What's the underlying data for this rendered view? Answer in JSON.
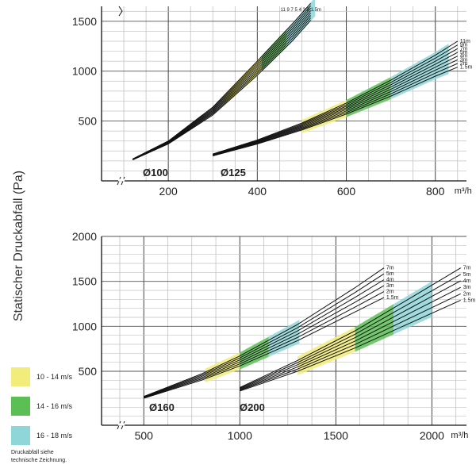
{
  "y_axis_title": "Statischer Druckabfall (Pa)",
  "legend": [
    {
      "label": "10 - 14 m/s",
      "color": "#f2ec7a"
    },
    {
      "label": "14 - 16 m/s",
      "color": "#5cbf55"
    },
    {
      "label": "16 - 18 m/s",
      "color": "#8fd6d8"
    }
  ],
  "note_lines": [
    "Druckabfall siehe",
    "technische Zeichnung."
  ],
  "chart_data": [
    {
      "type": "line",
      "x_unit": "m³/h",
      "x_ticks": [
        200,
        400,
        600,
        800
      ],
      "y_ticks": [
        500,
        1000,
        1500
      ],
      "xlim": [
        50,
        870
      ],
      "ylim": [
        -100,
        1650
      ],
      "ducts": [
        {
          "name": "Ø100",
          "lengths": [
            "11",
            "9",
            "7",
            "5",
            "4",
            "3",
            "2",
            "1.5m"
          ],
          "lengths_label": "11 9 7 5 4 3 2 1.5m",
          "series": [
            {
              "name": "11m",
              "x": [
                120,
                200,
                300,
                400,
                480,
                520
              ],
              "y": [
                120,
                300,
                640,
                1100,
                1480,
                1680
              ]
            },
            {
              "name": "1.5m",
              "x": [
                120,
                200,
                300,
                400,
                480,
                540
              ],
              "y": [
                110,
                270,
                560,
                960,
                1310,
                1610
              ]
            }
          ],
          "bands": [
            {
              "speed": "10 - 14 m/s",
              "x_from": 325,
              "x_to": 410
            },
            {
              "speed": "14 - 16 m/s",
              "x_from": 410,
              "x_to": 465
            },
            {
              "speed": "16 - 18 m/s",
              "x_from": 465,
              "x_to": 530
            }
          ]
        },
        {
          "name": "Ø125",
          "lengths": [
            "11m",
            "9m",
            "7m",
            "5m",
            "4m",
            "3m",
            "2m",
            "1.5m"
          ],
          "series": [
            {
              "name": "11m",
              "x": [
                300,
                400,
                500,
                600,
                700,
                800,
                850
              ],
              "y": [
                170,
                310,
                480,
                680,
                910,
                1160,
                1300
              ]
            },
            {
              "name": "1.5m",
              "x": [
                300,
                400,
                500,
                600,
                700,
                800,
                850
              ],
              "y": [
                150,
                270,
                410,
                570,
                750,
                950,
                1040
              ]
            }
          ],
          "bands": [
            {
              "speed": "10 - 14 m/s",
              "x_from": 500,
              "x_to": 600
            },
            {
              "speed": "14 - 16 m/s",
              "x_from": 600,
              "x_to": 700
            },
            {
              "speed": "16 - 18 m/s",
              "x_from": 700,
              "x_to": 830
            }
          ]
        }
      ]
    },
    {
      "type": "line",
      "x_unit": "m³/h",
      "x_ticks": [
        500,
        1000,
        1500,
        2000
      ],
      "y_ticks": [
        500,
        1000,
        1500,
        2000
      ],
      "xlim": [
        280,
        2180
      ],
      "ylim": [
        -100,
        2000
      ],
      "ducts": [
        {
          "name": "Ø160",
          "lengths": [
            "7m",
            "5m",
            "4m",
            "3m",
            "2m",
            "1.5m"
          ],
          "series": [
            {
              "name": "7m",
              "x": [
                500,
                800,
                1000,
                1300,
                1600,
                1750
              ],
              "y": [
                220,
                470,
                670,
                1020,
                1430,
                1650
              ]
            },
            {
              "name": "1.5m",
              "x": [
                500,
                800,
                1000,
                1300,
                1600,
                1750
              ],
              "y": [
                200,
                400,
                560,
                840,
                1160,
                1320
              ]
            }
          ],
          "bands": [
            {
              "speed": "10 - 14 m/s",
              "x_from": 820,
              "x_to": 1000
            },
            {
              "speed": "14 - 16 m/s",
              "x_from": 1000,
              "x_to": 1150
            },
            {
              "speed": "16 - 18 m/s",
              "x_from": 1150,
              "x_to": 1310
            }
          ]
        },
        {
          "name": "Ø200",
          "lengths": [
            "7m",
            "5m",
            "4m",
            "3m",
            "2m",
            "1.5m"
          ],
          "series": [
            {
              "name": "7m",
              "x": [
                1000,
                1300,
                1600,
                1900,
                2150
              ],
              "y": [
                320,
                620,
                950,
                1330,
                1650
              ]
            },
            {
              "name": "1.5m",
              "x": [
                1000,
                1300,
                1600,
                1900,
                2150
              ],
              "y": [
                280,
                500,
                760,
                1050,
                1290
              ]
            }
          ],
          "bands": [
            {
              "speed": "10 - 14 m/s",
              "x_from": 1300,
              "x_to": 1600
            },
            {
              "speed": "14 - 16 m/s",
              "x_from": 1600,
              "x_to": 1800
            },
            {
              "speed": "16 - 18 m/s",
              "x_from": 1800,
              "x_to": 2000
            }
          ]
        }
      ]
    }
  ]
}
